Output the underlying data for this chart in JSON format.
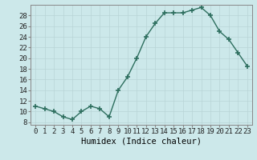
{
  "x": [
    0,
    1,
    2,
    3,
    4,
    5,
    6,
    7,
    8,
    9,
    10,
    11,
    12,
    13,
    14,
    15,
    16,
    17,
    18,
    19,
    20,
    21,
    22,
    23
  ],
  "y": [
    11,
    10.5,
    10,
    9,
    8.5,
    10,
    11,
    10.5,
    9,
    14,
    16.5,
    20,
    24,
    26.5,
    28.5,
    28.5,
    28.5,
    29,
    29.5,
    28,
    25,
    23.5,
    21,
    18.5
  ],
  "line_color": "#2d6e5e",
  "marker": "+",
  "marker_size": 4,
  "marker_lw": 1.2,
  "linewidth": 1.0,
  "xlabel": "Humidex (Indice chaleur)",
  "xlim": [
    -0.5,
    23.5
  ],
  "ylim": [
    7.5,
    30
  ],
  "yticks": [
    8,
    10,
    12,
    14,
    16,
    18,
    20,
    22,
    24,
    26,
    28
  ],
  "xticks": [
    0,
    1,
    2,
    3,
    4,
    5,
    6,
    7,
    8,
    9,
    10,
    11,
    12,
    13,
    14,
    15,
    16,
    17,
    18,
    19,
    20,
    21,
    22,
    23
  ],
  "background_color": "#cce8ea",
  "grid_color": "#b8d4d6",
  "tick_fontsize": 6.5,
  "xlabel_fontsize": 7.5
}
